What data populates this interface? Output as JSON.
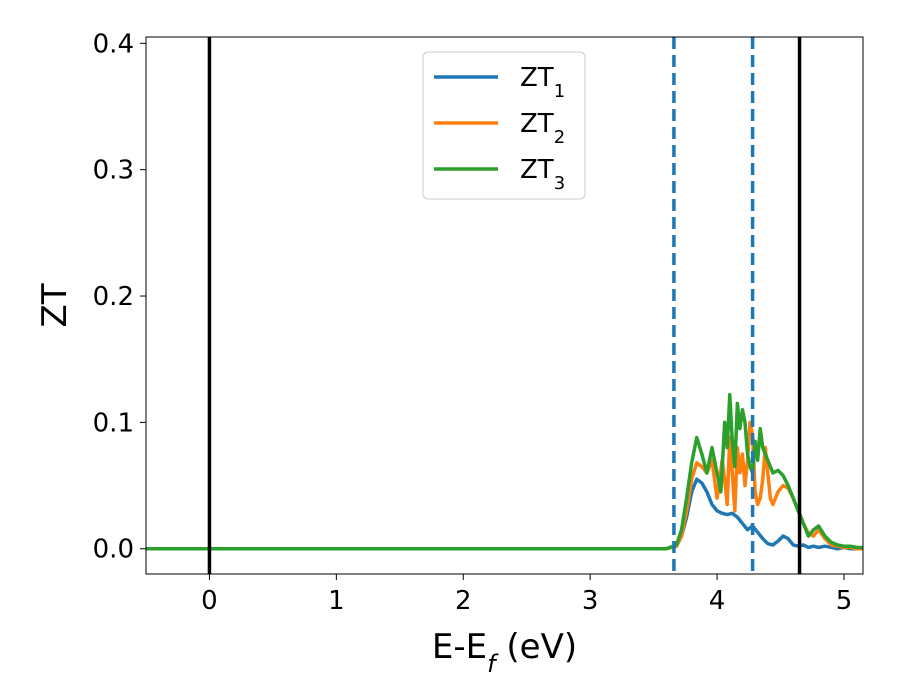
{
  "chart_data": {
    "type": "line",
    "xlabel": "E-E",
    "xlabel_sub": "f",
    "xlabel_unit": " (eV)",
    "ylabel": "ZT",
    "xlim": [
      -0.5,
      5.15
    ],
    "ylim": [
      -0.02,
      0.405
    ],
    "xticks": [
      0,
      1,
      2,
      3,
      4,
      5
    ],
    "xtick_labels": [
      "0",
      "1",
      "2",
      "3",
      "4",
      "5"
    ],
    "yticks": [
      0.0,
      0.1,
      0.2,
      0.3,
      0.4
    ],
    "ytick_labels": [
      "0.0",
      "0.1",
      "0.2",
      "0.3",
      "0.4"
    ],
    "grid": false,
    "legend_position": "top-center",
    "vlines": [
      {
        "x": 0.0,
        "style": "solid",
        "color": "#000000"
      },
      {
        "x": 4.65,
        "style": "solid",
        "color": "#000000"
      },
      {
        "x": 3.66,
        "style": "dashed",
        "color": "#1f77b4"
      },
      {
        "x": 4.28,
        "style": "dashed",
        "color": "#1f77b4"
      }
    ],
    "series": [
      {
        "name": "ZT",
        "name_sub": "1",
        "color": "#1f77b4",
        "x": [
          -0.5,
          3.6,
          3.68,
          3.72,
          3.76,
          3.8,
          3.84,
          3.88,
          3.92,
          3.96,
          4.0,
          4.04,
          4.08,
          4.12,
          4.16,
          4.2,
          4.24,
          4.28,
          4.32,
          4.36,
          4.4,
          4.44,
          4.48,
          4.52,
          4.56,
          4.6,
          4.64,
          4.68,
          4.72,
          4.76,
          4.8,
          4.85,
          4.9,
          4.95,
          5.0,
          5.05,
          5.1,
          5.15
        ],
        "y": [
          0.0,
          0.0,
          0.002,
          0.01,
          0.025,
          0.045,
          0.055,
          0.052,
          0.045,
          0.035,
          0.03,
          0.028,
          0.027,
          0.028,
          0.025,
          0.02,
          0.015,
          0.018,
          0.013,
          0.008,
          0.004,
          0.003,
          0.006,
          0.01,
          0.008,
          0.003,
          0.002,
          0.003,
          0.001,
          0.002,
          0.001,
          0.002,
          0.001,
          0.0,
          0.001,
          0.0,
          0.0,
          0.0
        ]
      },
      {
        "name": "ZT",
        "name_sub": "2",
        "color": "#ff7f0e",
        "x": [
          -0.5,
          3.6,
          3.68,
          3.72,
          3.76,
          3.8,
          3.84,
          3.88,
          3.92,
          3.96,
          4.0,
          4.04,
          4.06,
          4.08,
          4.1,
          4.12,
          4.14,
          4.16,
          4.18,
          4.2,
          4.22,
          4.24,
          4.26,
          4.28,
          4.3,
          4.32,
          4.34,
          4.36,
          4.38,
          4.4,
          4.42,
          4.44,
          4.48,
          4.52,
          4.56,
          4.6,
          4.64,
          4.68,
          4.72,
          4.76,
          4.8,
          4.85,
          4.9,
          4.95,
          5.0,
          5.05,
          5.1,
          5.15
        ],
        "y": [
          0.0,
          0.0,
          0.002,
          0.01,
          0.03,
          0.055,
          0.068,
          0.065,
          0.06,
          0.07,
          0.04,
          0.07,
          0.055,
          0.035,
          0.088,
          0.06,
          0.03,
          0.08,
          0.06,
          0.075,
          0.05,
          0.07,
          0.1,
          0.09,
          0.045,
          0.035,
          0.04,
          0.055,
          0.08,
          0.06,
          0.04,
          0.035,
          0.045,
          0.05,
          0.048,
          0.04,
          0.03,
          0.02,
          0.012,
          0.01,
          0.015,
          0.008,
          0.003,
          0.002,
          0.001,
          0.001,
          0.0,
          0.0
        ]
      },
      {
        "name": "ZT",
        "name_sub": "3",
        "color": "#2ca02c",
        "x": [
          -0.5,
          3.6,
          3.68,
          3.72,
          3.76,
          3.8,
          3.84,
          3.88,
          3.92,
          3.96,
          4.0,
          4.03,
          4.06,
          4.08,
          4.1,
          4.12,
          4.14,
          4.16,
          4.18,
          4.2,
          4.22,
          4.24,
          4.26,
          4.28,
          4.3,
          4.32,
          4.34,
          4.36,
          4.38,
          4.4,
          4.44,
          4.48,
          4.52,
          4.56,
          4.6,
          4.64,
          4.68,
          4.72,
          4.76,
          4.8,
          4.85,
          4.9,
          4.95,
          5.0,
          5.05,
          5.1,
          5.15
        ],
        "y": [
          0.0,
          0.0,
          0.003,
          0.015,
          0.04,
          0.068,
          0.088,
          0.075,
          0.06,
          0.08,
          0.06,
          0.045,
          0.1,
          0.08,
          0.122,
          0.085,
          0.065,
          0.115,
          0.095,
          0.11,
          0.1,
          0.075,
          0.065,
          0.06,
          0.085,
          0.07,
          0.095,
          0.08,
          0.075,
          0.07,
          0.06,
          0.062,
          0.058,
          0.05,
          0.04,
          0.03,
          0.02,
          0.01,
          0.015,
          0.018,
          0.01,
          0.005,
          0.003,
          0.002,
          0.002,
          0.001,
          0.001
        ]
      }
    ]
  }
}
